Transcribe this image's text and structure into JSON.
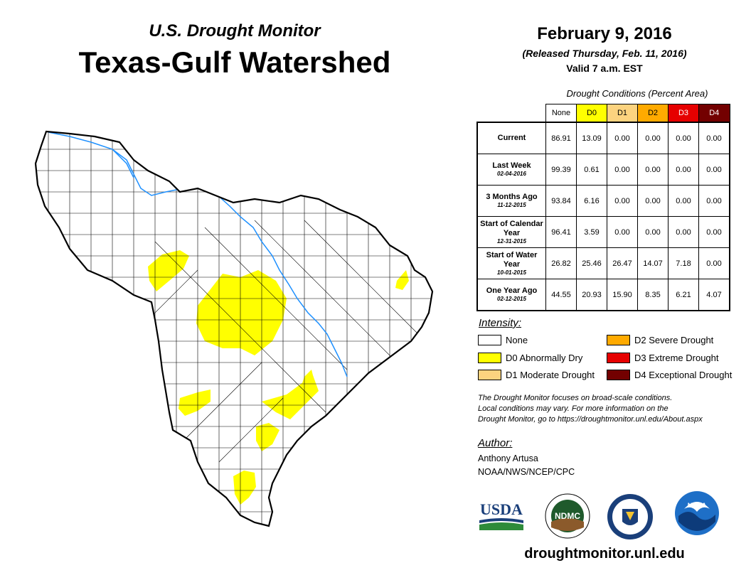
{
  "header": {
    "subtitle": "U.S. Drought Monitor",
    "title": "Texas-Gulf Watershed",
    "date": "February 9, 2016",
    "released": "(Released Thursday, Feb. 11, 2016)",
    "valid": "Valid 7 a.m. EST"
  },
  "table": {
    "caption": "Drought Conditions (Percent Area)",
    "columns": [
      "None",
      "D0",
      "D1",
      "D2",
      "D3",
      "D4"
    ],
    "column_colors": [
      "#ffffff",
      "#ffff00",
      "#fcd37f",
      "#ffaa00",
      "#e60000",
      "#730000"
    ],
    "column_text_colors": [
      "#000000",
      "#000000",
      "#000000",
      "#000000",
      "#ffffff",
      "#ffffff"
    ],
    "rows": [
      {
        "label": "Current",
        "date": "",
        "values": [
          "86.91",
          "13.09",
          "0.00",
          "0.00",
          "0.00",
          "0.00"
        ]
      },
      {
        "label": "Last Week",
        "date": "02-04-2016",
        "values": [
          "99.39",
          "0.61",
          "0.00",
          "0.00",
          "0.00",
          "0.00"
        ]
      },
      {
        "label": "3 Months Ago",
        "date": "11-12-2015",
        "values": [
          "93.84",
          "6.16",
          "0.00",
          "0.00",
          "0.00",
          "0.00"
        ]
      },
      {
        "label": "Start of Calendar Year",
        "date": "12-31-2015",
        "values": [
          "96.41",
          "3.59",
          "0.00",
          "0.00",
          "0.00",
          "0.00"
        ]
      },
      {
        "label": "Start of Water Year",
        "date": "10-01-2015",
        "values": [
          "26.82",
          "25.46",
          "26.47",
          "14.07",
          "7.18",
          "0.00"
        ]
      },
      {
        "label": "One Year Ago",
        "date": "02-12-2015",
        "values": [
          "44.55",
          "20.93",
          "15.90",
          "8.35",
          "6.21",
          "4.07"
        ]
      }
    ]
  },
  "legend": {
    "title": "Intensity:",
    "items": [
      {
        "label": "None",
        "color": "#ffffff"
      },
      {
        "label": "D0 Abnormally Dry",
        "color": "#ffff00"
      },
      {
        "label": "D1 Moderate Drought",
        "color": "#fcd37f"
      },
      {
        "label": "D2 Severe Drought",
        "color": "#ffaa00"
      },
      {
        "label": "D3 Extreme Drought",
        "color": "#e60000"
      },
      {
        "label": "D4 Exceptional Drought",
        "color": "#730000"
      }
    ]
  },
  "note": {
    "line1": "The Drought Monitor focuses on broad-scale conditions.",
    "line2": "Local conditions may vary. For more information on the",
    "line3": "Drought Monitor, go to https://droughtmonitor.unl.edu/About.aspx"
  },
  "author": {
    "label": "Author:",
    "name": "Anthony Artusa",
    "org": "NOAA/NWS/NCEP/CPC"
  },
  "logos": {
    "usda": "USDA",
    "ndmc": "NDMC",
    "noaa": "NOAA"
  },
  "footer": {
    "url": "droughtmonitor.unl.edu"
  },
  "colors": {
    "river": "#1e90ff",
    "d0": "#ffff00",
    "boundary": "#000000"
  }
}
